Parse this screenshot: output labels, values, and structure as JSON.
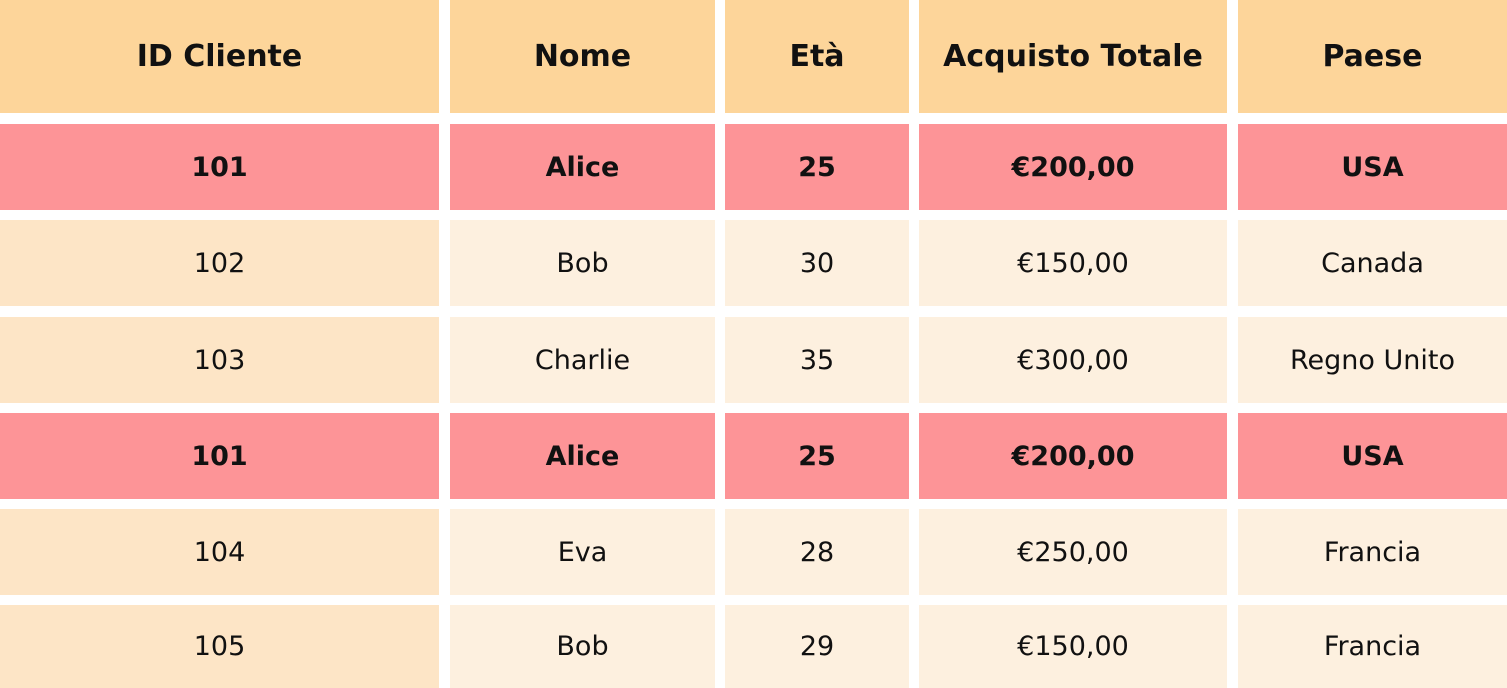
{
  "table": {
    "header": [
      "ID Cliente",
      "Nome",
      "Età",
      "Acquisto Totale",
      "Paese"
    ],
    "rows": [
      [
        "101",
        "Alice",
        "25",
        "€200,00",
        "USA"
      ],
      [
        "102",
        "Bob",
        "30",
        "€150,00",
        "Canada"
      ],
      [
        "103",
        "Charlie",
        "35",
        "€300,00",
        "Regno Unito"
      ],
      [
        "101",
        "Alice",
        "25",
        "€200,00",
        "USA"
      ],
      [
        "104",
        "Eva",
        "28",
        "€250,00",
        "Francia"
      ],
      [
        "105",
        "Bob",
        "29",
        "€150,00",
        "Francia"
      ]
    ],
    "highlighted_rows": [
      0,
      3
    ]
  }
}
